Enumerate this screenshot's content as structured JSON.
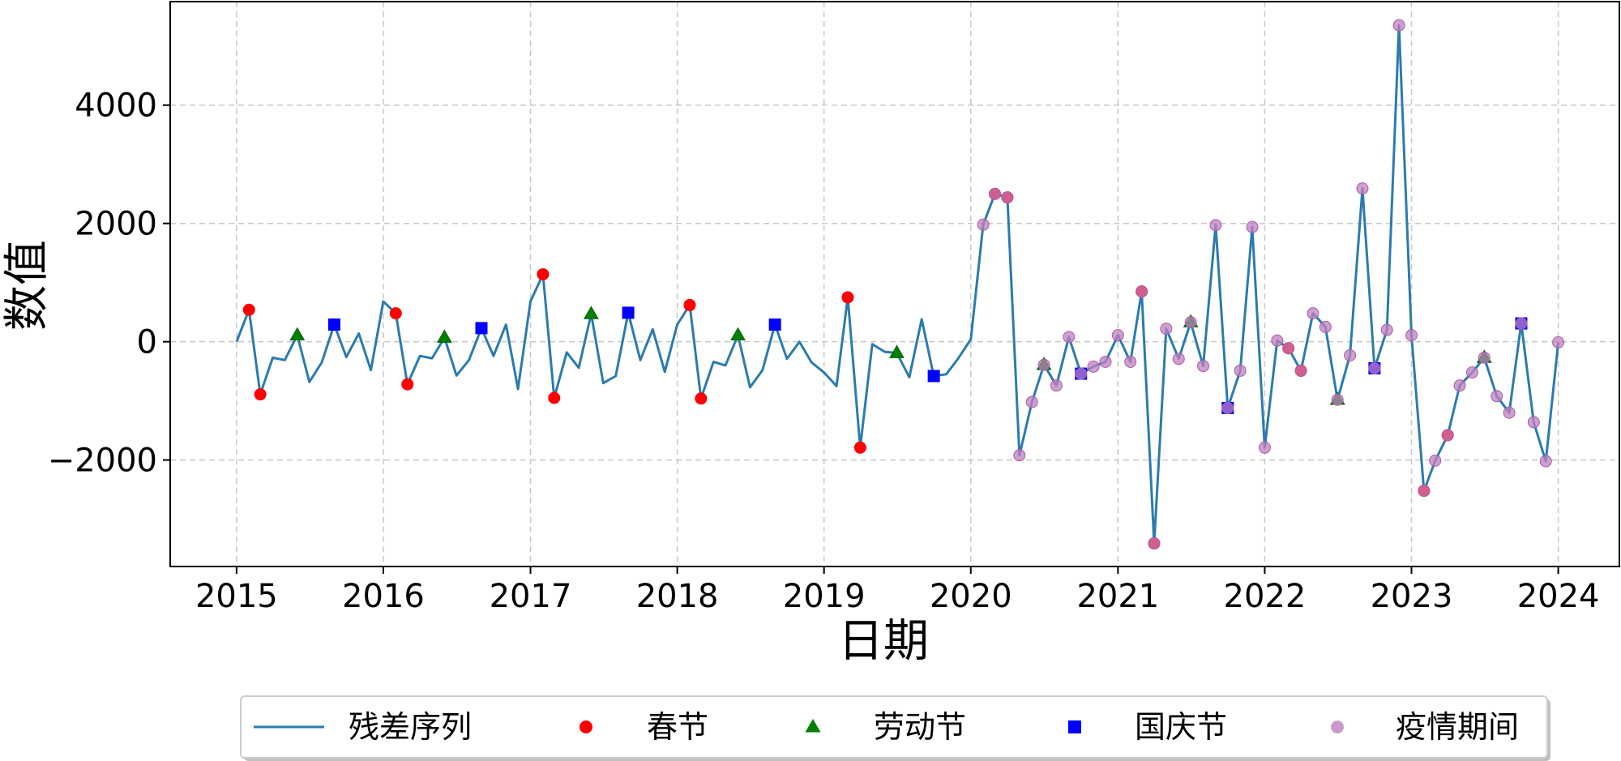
{
  "chart_data": {
    "type": "line",
    "xlabel": "日期",
    "ylabel": "数值",
    "x_ticks": [
      "2015",
      "2016",
      "2017",
      "2018",
      "2019",
      "2020",
      "2021",
      "2022",
      "2023",
      "2024"
    ],
    "y_ticks": [
      "−2000",
      "0",
      "2000",
      "4000"
    ],
    "y_tick_values": [
      -2000,
      0,
      2000,
      4000
    ],
    "xlim": [
      "2014-07-20",
      "2024-06-01"
    ],
    "ylim": [
      -3800,
      5750
    ],
    "grid": true,
    "legend_position": "bottom",
    "colors": {
      "line": "#2b7bb0",
      "spring": "#ff0000",
      "labor": "#008000",
      "national": "#0000ff",
      "pandemic": "#c07fc0"
    },
    "series": [
      {
        "name": "残差序列",
        "kind": "line",
        "points": [
          [
            "2015-01-01",
            0
          ],
          [
            "2015-02-01",
            540
          ],
          [
            "2015-03-01",
            -890
          ],
          [
            "2015-04-01",
            -270
          ],
          [
            "2015-05-01",
            -310
          ],
          [
            "2015-06-01",
            110
          ],
          [
            "2015-07-01",
            -680
          ],
          [
            "2015-08-01",
            -350
          ],
          [
            "2015-09-01",
            290
          ],
          [
            "2015-10-01",
            -260
          ],
          [
            "2015-11-01",
            140
          ],
          [
            "2015-12-01",
            -480
          ],
          [
            "2016-01-01",
            680
          ],
          [
            "2016-02-01",
            480
          ],
          [
            "2016-03-01",
            -720
          ],
          [
            "2016-04-01",
            -240
          ],
          [
            "2016-05-01",
            -280
          ],
          [
            "2016-06-01",
            70
          ],
          [
            "2016-07-01",
            -570
          ],
          [
            "2016-08-01",
            -310
          ],
          [
            "2016-09-01",
            230
          ],
          [
            "2016-10-01",
            -240
          ],
          [
            "2016-11-01",
            290
          ],
          [
            "2016-12-01",
            -800
          ],
          [
            "2017-01-01",
            680
          ],
          [
            "2017-02-01",
            1140
          ],
          [
            "2017-03-01",
            -950
          ],
          [
            "2017-04-01",
            -180
          ],
          [
            "2017-05-01",
            -440
          ],
          [
            "2017-06-01",
            470
          ],
          [
            "2017-07-01",
            -700
          ],
          [
            "2017-08-01",
            -580
          ],
          [
            "2017-09-01",
            490
          ],
          [
            "2017-10-01",
            -310
          ],
          [
            "2017-11-01",
            210
          ],
          [
            "2017-12-01",
            -510
          ],
          [
            "2018-01-01",
            290
          ],
          [
            "2018-02-01",
            620
          ],
          [
            "2018-03-01",
            -960
          ],
          [
            "2018-04-01",
            -340
          ],
          [
            "2018-05-01",
            -400
          ],
          [
            "2018-06-01",
            110
          ],
          [
            "2018-07-01",
            -770
          ],
          [
            "2018-08-01",
            -480
          ],
          [
            "2018-09-01",
            290
          ],
          [
            "2018-10-01",
            -290
          ],
          [
            "2018-11-01",
            0
          ],
          [
            "2018-12-01",
            -350
          ],
          [
            "2019-01-01",
            -520
          ],
          [
            "2019-02-01",
            -750
          ],
          [
            "2019-03-01",
            750
          ],
          [
            "2019-04-01",
            -1790
          ],
          [
            "2019-05-01",
            -40
          ],
          [
            "2019-06-01",
            -170
          ],
          [
            "2019-07-01",
            -190
          ],
          [
            "2019-08-01",
            -600
          ],
          [
            "2019-09-01",
            380
          ],
          [
            "2019-10-01",
            -580
          ],
          [
            "2019-11-01",
            -550
          ],
          [
            "2019-12-01",
            -280
          ],
          [
            "2020-01-01",
            40
          ],
          [
            "2020-02-01",
            1980
          ],
          [
            "2020-03-01",
            2500
          ],
          [
            "2020-04-01",
            2440
          ],
          [
            "2020-05-01",
            -1920
          ],
          [
            "2020-06-01",
            -1020
          ],
          [
            "2020-07-01",
            -390
          ],
          [
            "2020-08-01",
            -740
          ],
          [
            "2020-09-01",
            80
          ],
          [
            "2020-10-01",
            -540
          ],
          [
            "2020-11-01",
            -420
          ],
          [
            "2020-12-01",
            -340
          ],
          [
            "2021-01-01",
            110
          ],
          [
            "2021-02-01",
            -340
          ],
          [
            "2021-03-01",
            850
          ],
          [
            "2021-04-01",
            -3410
          ],
          [
            "2021-05-01",
            220
          ],
          [
            "2021-06-01",
            -290
          ],
          [
            "2021-07-01",
            330
          ],
          [
            "2021-08-01",
            -410
          ],
          [
            "2021-09-01",
            1970
          ],
          [
            "2021-10-01",
            -1120
          ],
          [
            "2021-11-01",
            -490
          ],
          [
            "2021-12-01",
            1940
          ],
          [
            "2022-01-01",
            -1790
          ],
          [
            "2022-02-01",
            20
          ],
          [
            "2022-03-01",
            -110
          ],
          [
            "2022-04-01",
            -490
          ],
          [
            "2022-05-01",
            480
          ],
          [
            "2022-06-01",
            250
          ],
          [
            "2022-07-01",
            -980
          ],
          [
            "2022-08-01",
            -230
          ],
          [
            "2022-09-01",
            2590
          ],
          [
            "2022-10-01",
            -450
          ],
          [
            "2022-11-01",
            200
          ],
          [
            "2022-12-01",
            5350
          ],
          [
            "2023-01-01",
            110
          ],
          [
            "2023-02-01",
            -2520
          ],
          [
            "2023-03-01",
            -2010
          ],
          [
            "2023-04-01",
            -1580
          ],
          [
            "2023-05-01",
            -740
          ],
          [
            "2023-06-01",
            -520
          ],
          [
            "2023-07-01",
            -270
          ],
          [
            "2023-08-01",
            -920
          ],
          [
            "2023-09-01",
            -1200
          ],
          [
            "2023-10-01",
            310
          ],
          [
            "2023-11-01",
            -1360
          ],
          [
            "2023-12-01",
            -2020
          ],
          [
            "2024-01-01",
            -10
          ]
        ]
      },
      {
        "name": "春节",
        "kind": "circle",
        "points": [
          [
            "2015-02-01",
            540
          ],
          [
            "2015-03-01",
            -890
          ],
          [
            "2016-02-01",
            480
          ],
          [
            "2016-03-01",
            -720
          ],
          [
            "2017-02-01",
            1140
          ],
          [
            "2017-03-01",
            -950
          ],
          [
            "2018-02-01",
            620
          ],
          [
            "2018-03-01",
            -960
          ],
          [
            "2019-03-01",
            750
          ],
          [
            "2019-04-01",
            -1790
          ],
          [
            "2020-03-01",
            2500
          ],
          [
            "2020-04-01",
            2440
          ],
          [
            "2021-03-01",
            850
          ],
          [
            "2021-04-01",
            -3410
          ],
          [
            "2022-03-01",
            -110
          ],
          [
            "2022-04-01",
            -490
          ],
          [
            "2023-02-01",
            -2520
          ],
          [
            "2023-04-01",
            -1580
          ]
        ]
      },
      {
        "name": "劳动节",
        "kind": "triangle",
        "points": [
          [
            "2015-06-01",
            110
          ],
          [
            "2016-06-01",
            70
          ],
          [
            "2017-06-01",
            470
          ],
          [
            "2018-06-01",
            110
          ],
          [
            "2019-07-01",
            -190
          ],
          [
            "2020-07-01",
            -390
          ],
          [
            "2021-07-01",
            330
          ],
          [
            "2022-07-01",
            -980
          ],
          [
            "2023-07-01",
            -270
          ]
        ]
      },
      {
        "name": "国庆节",
        "kind": "square",
        "points": [
          [
            "2015-09-01",
            290
          ],
          [
            "2016-09-01",
            230
          ],
          [
            "2017-09-01",
            490
          ],
          [
            "2018-09-01",
            290
          ],
          [
            "2019-10-01",
            -580
          ],
          [
            "2020-10-01",
            -540
          ],
          [
            "2021-10-01",
            -1120
          ],
          [
            "2022-10-01",
            -450
          ],
          [
            "2023-10-01",
            310
          ]
        ]
      },
      {
        "name": "疫情期间",
        "kind": "pandemic",
        "points": [
          [
            "2020-02-01",
            1980
          ],
          [
            "2020-03-01",
            2500
          ],
          [
            "2020-04-01",
            2440
          ],
          [
            "2020-05-01",
            -1920
          ],
          [
            "2020-06-01",
            -1020
          ],
          [
            "2020-07-01",
            -390
          ],
          [
            "2020-08-01",
            -740
          ],
          [
            "2020-09-01",
            80
          ],
          [
            "2020-10-01",
            -540
          ],
          [
            "2020-11-01",
            -420
          ],
          [
            "2020-12-01",
            -340
          ],
          [
            "2021-01-01",
            110
          ],
          [
            "2021-02-01",
            -340
          ],
          [
            "2021-03-01",
            850
          ],
          [
            "2021-04-01",
            -3410
          ],
          [
            "2021-05-01",
            220
          ],
          [
            "2021-06-01",
            -290
          ],
          [
            "2021-07-01",
            330
          ],
          [
            "2021-08-01",
            -410
          ],
          [
            "2021-09-01",
            1970
          ],
          [
            "2021-10-01",
            -1120
          ],
          [
            "2021-11-01",
            -490
          ],
          [
            "2021-12-01",
            1940
          ],
          [
            "2022-01-01",
            -1790
          ],
          [
            "2022-02-01",
            20
          ],
          [
            "2022-03-01",
            -110
          ],
          [
            "2022-04-01",
            -490
          ],
          [
            "2022-05-01",
            480
          ],
          [
            "2022-06-01",
            250
          ],
          [
            "2022-07-01",
            -980
          ],
          [
            "2022-08-01",
            -230
          ],
          [
            "2022-09-01",
            2590
          ],
          [
            "2022-10-01",
            -450
          ],
          [
            "2022-11-01",
            200
          ],
          [
            "2022-12-01",
            5350
          ],
          [
            "2023-01-01",
            110
          ],
          [
            "2023-02-01",
            -2520
          ],
          [
            "2023-03-01",
            -2010
          ],
          [
            "2023-04-01",
            -1580
          ],
          [
            "2023-05-01",
            -740
          ],
          [
            "2023-06-01",
            -520
          ],
          [
            "2023-07-01",
            -270
          ],
          [
            "2023-08-01",
            -920
          ],
          [
            "2023-09-01",
            -1200
          ],
          [
            "2023-10-01",
            310
          ],
          [
            "2023-11-01",
            -1360
          ],
          [
            "2023-12-01",
            -2020
          ],
          [
            "2024-01-01",
            -10
          ]
        ]
      }
    ],
    "legend": [
      "残差序列",
      "春节",
      "劳动节",
      "国庆节",
      "疫情期间"
    ]
  }
}
